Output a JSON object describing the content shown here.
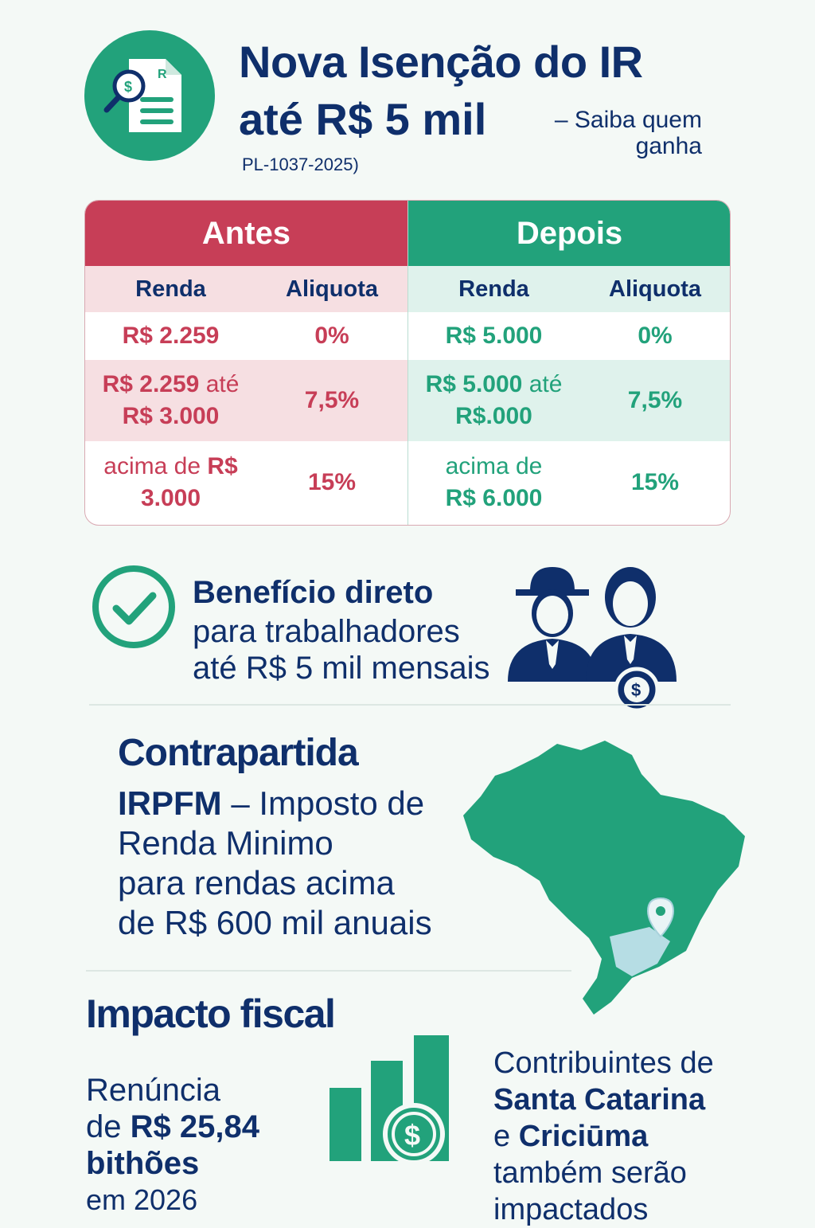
{
  "header": {
    "title_line1": "Nova Isenção do IR",
    "title_line2": "até R$ 5 mil",
    "subtitle": "– Saiba quem ganha",
    "reference": "PL-1037-2025)"
  },
  "table": {
    "before": {
      "heading": "Antes",
      "col_income": "Renda",
      "col_rate": "Aliquota",
      "rows": [
        {
          "income_bold": "R$ 2.259",
          "income_rest": "",
          "rate": "0%"
        },
        {
          "income_bold": "R$ 2.259",
          "income_rest": " até",
          "income_line2": "R$ 3.000",
          "rate": "7,5%"
        },
        {
          "income_prefix": "acima de ",
          "income_bold": "R$",
          "income_line2": "3.000",
          "rate": "15%"
        }
      ]
    },
    "after": {
      "heading": "Depois",
      "col_income": "Renda",
      "col_rate": "Aliquota",
      "rows": [
        {
          "income_bold": "R$ 5.000",
          "income_rest": "",
          "rate": "0%"
        },
        {
          "income_bold": "R$ 5.000",
          "income_rest": " até",
          "income_line2": "R$.000",
          "rate": "7,5%"
        },
        {
          "income_prefix": "acima de",
          "income_line2": "R$ 6.000",
          "rate": "15%"
        }
      ]
    }
  },
  "benefit": {
    "title": "Benefício direto",
    "line1": "para trabalhadores",
    "line2": "até R$ 5 mil mensais"
  },
  "counterpart": {
    "title": "Contrapartida",
    "acronym": "IRPFM",
    "text1": " – Imposto de",
    "line2": "Renda Minimo",
    "line3": "para rendas acima",
    "line4": "de R$ 600 mil anuais"
  },
  "impact": {
    "title": "Impacto fiscal",
    "renuncia_line1": "Renúncia",
    "renuncia_prefix": "de ",
    "renuncia_value": "R$ 25,84",
    "renuncia_unit": "bithões",
    "renuncia_year": "em 2026",
    "contrib_line1": "Contribuintes de",
    "contrib_state": "Santa Catarina",
    "contrib_and": "e ",
    "contrib_city": "Criciūma",
    "contrib_line3": "também serão",
    "contrib_line4": "impactados"
  },
  "colors": {
    "navy": "#0f2f6b",
    "green": "#22a27b",
    "red": "#c73e57",
    "pink_bg": "#f6dfe2",
    "mint_bg": "#dff2ec"
  },
  "icons": [
    "tax-document-search-icon",
    "check-circle-icon",
    "workers-icon",
    "dollar-coin-icon",
    "brazil-map-icon",
    "location-pin-icon",
    "bar-chart-icon"
  ]
}
